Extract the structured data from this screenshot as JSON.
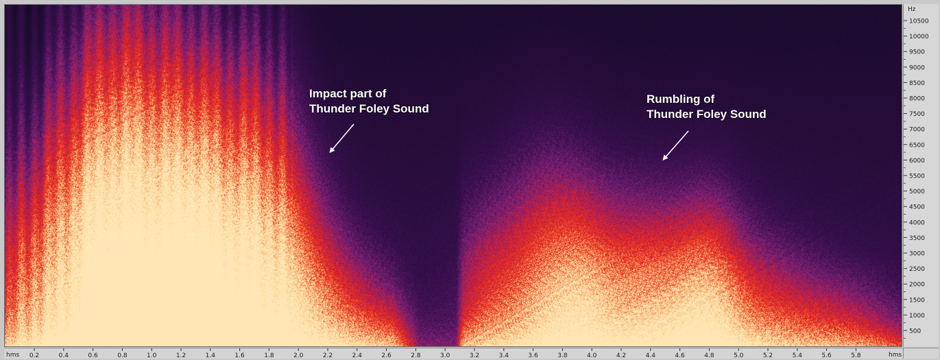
{
  "annotations": {
    "impact": {
      "line1": "Impact part of",
      "line2": "Thunder Foley Sound"
    },
    "rumble": {
      "line1": "Rumbling of",
      "line2": "Thunder Foley Sound"
    }
  },
  "freq_axis": {
    "unit": "Hz",
    "labels": [
      "10500",
      "10000",
      "9500",
      "9000",
      "8500",
      "8000",
      "7500",
      "7000",
      "6500",
      "6000",
      "5500",
      "5000",
      "4500",
      "4000",
      "3500",
      "3000",
      "2500",
      "2000",
      "1500",
      "1000",
      "500"
    ]
  },
  "time_axis": {
    "unit_left": "hms",
    "unit_right": "hms",
    "labels": [
      "0.2",
      "0.4",
      "0.6",
      "0.8",
      "1.0",
      "1.2",
      "1.4",
      "1.6",
      "1.8",
      "2.0",
      "2.2",
      "2.4",
      "2.6",
      "2.8",
      "3.0",
      "3.2",
      "3.4",
      "3.6",
      "3.8",
      "4.0",
      "4.2",
      "4.4",
      "4.6",
      "4.8",
      "5.0",
      "5.2",
      "5.4",
      "5.6",
      "5.8"
    ]
  },
  "colors": {
    "background": "#140a26",
    "low": "#3a1050",
    "mid": "#8e2a7a",
    "high": "#e8261e",
    "peak": "#f3c47a"
  }
}
